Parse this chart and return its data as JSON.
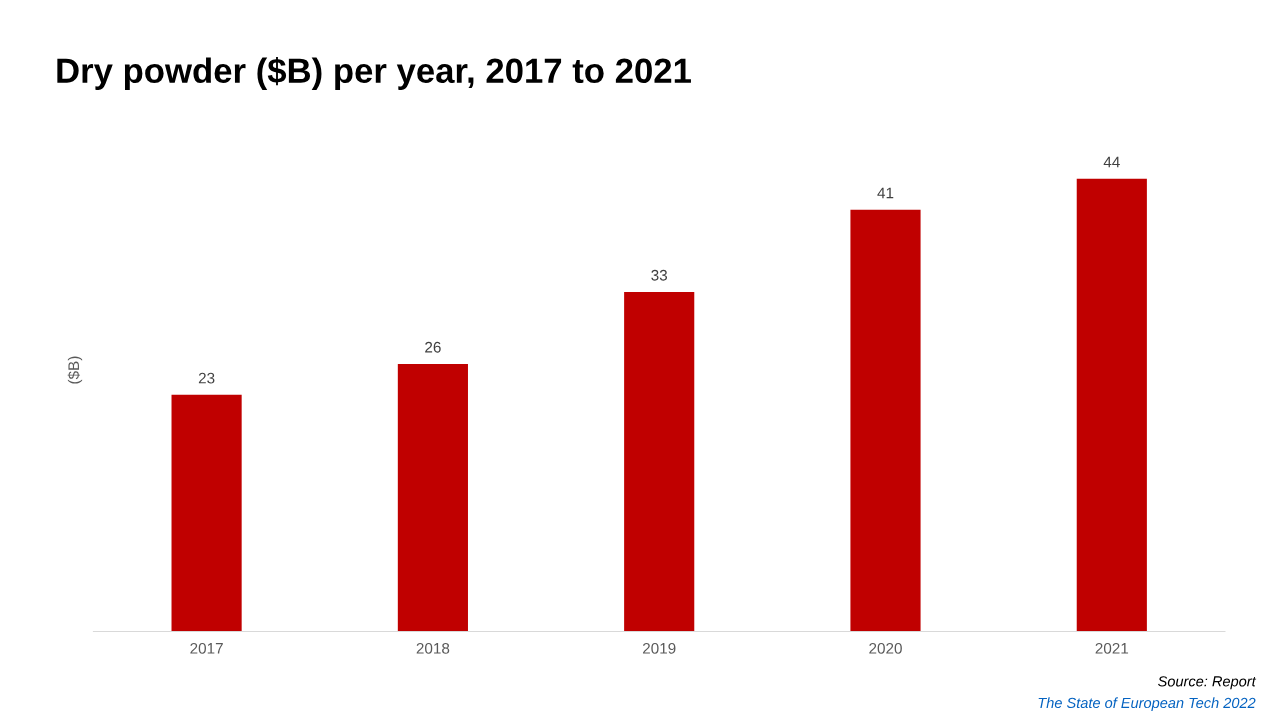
{
  "chart_data": {
    "type": "bar",
    "title": "Dry powder ($B) per year, 2017 to 2021",
    "ylabel": "($B)",
    "categories": [
      "2017",
      "2018",
      "2019",
      "2020",
      "2021"
    ],
    "values": [
      23,
      26,
      33,
      41,
      44
    ],
    "color": "#c00000",
    "data_labels": true,
    "grid": false,
    "legend": false,
    "annotations": [
      "Source: Report",
      "The State of European Tech 2022"
    ]
  }
}
